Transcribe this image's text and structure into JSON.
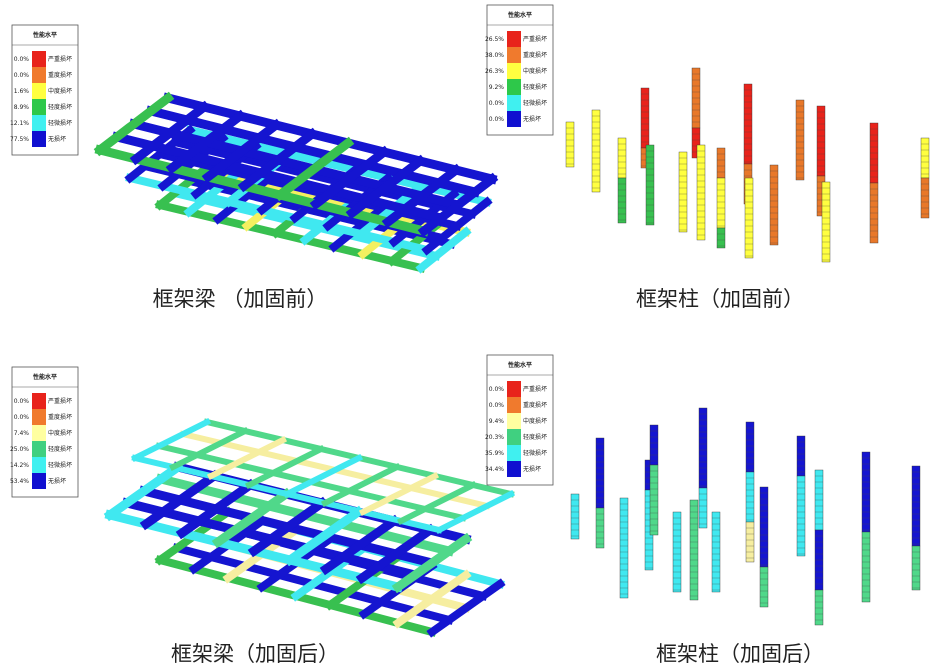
{
  "panels": [
    {
      "caption": "框架梁 （加固前）",
      "legend": {
        "title": "性能水平",
        "items": [
          {
            "percent": "0.0%",
            "label": "严重损坏",
            "color": "#e8231b"
          },
          {
            "percent": "0.0%",
            "label": "重度损坏",
            "color": "#f07a2d"
          },
          {
            "percent": "1.6%",
            "label": "中度损坏",
            "color": "#ffff40"
          },
          {
            "percent": "8.9%",
            "label": "轻度损坏",
            "color": "#2ec84a"
          },
          {
            "percent": "12.1%",
            "label": "轻微损坏",
            "color": "#40f0f0"
          },
          {
            "percent": "77.5%",
            "label": "无损坏",
            "color": "#1010d0"
          }
        ]
      }
    },
    {
      "caption": "框架柱（加固前）",
      "legend": {
        "title": "性能水平",
        "items": [
          {
            "percent": "26.5%",
            "label": "严重损坏",
            "color": "#e8231b"
          },
          {
            "percent": "38.0%",
            "label": "重度损坏",
            "color": "#f07a2d"
          },
          {
            "percent": "26.3%",
            "label": "中度损坏",
            "color": "#ffff40"
          },
          {
            "percent": "9.2%",
            "label": "轻度损坏",
            "color": "#2ec84a"
          },
          {
            "percent": "0.0%",
            "label": "轻微损坏",
            "color": "#40f0f0"
          },
          {
            "percent": "0.0%",
            "label": "无损坏",
            "color": "#1010d0"
          }
        ]
      }
    },
    {
      "caption": "框架梁（加固后）",
      "legend": {
        "title": "性能水平",
        "items": [
          {
            "percent": "0.0%",
            "label": "严重损坏",
            "color": "#e8231b"
          },
          {
            "percent": "0.0%",
            "label": "重度损坏",
            "color": "#f07a2d"
          },
          {
            "percent": "7.4%",
            "label": "中度损坏",
            "color": "#ffffa0"
          },
          {
            "percent": "25.0%",
            "label": "轻度损坏",
            "color": "#40d080"
          },
          {
            "percent": "14.2%",
            "label": "轻微损坏",
            "color": "#40f0f0"
          },
          {
            "percent": "53.4%",
            "label": "无损坏",
            "color": "#1010d0"
          }
        ]
      }
    },
    {
      "caption": "框架柱（加固后）",
      "legend": {
        "title": "性能水平",
        "items": [
          {
            "percent": "0.0%",
            "label": "严重损坏",
            "color": "#e8231b"
          },
          {
            "percent": "0.0%",
            "label": "重度损坏",
            "color": "#f07a2d"
          },
          {
            "percent": "9.4%",
            "label": "中度损坏",
            "color": "#ffffa0"
          },
          {
            "percent": "20.3%",
            "label": "轻度损坏",
            "color": "#40d080"
          },
          {
            "percent": "35.9%",
            "label": "轻微损坏",
            "color": "#40f0f0"
          },
          {
            "percent": "34.4%",
            "label": "无损坏",
            "color": "#1010d0"
          }
        ]
      }
    }
  ]
}
